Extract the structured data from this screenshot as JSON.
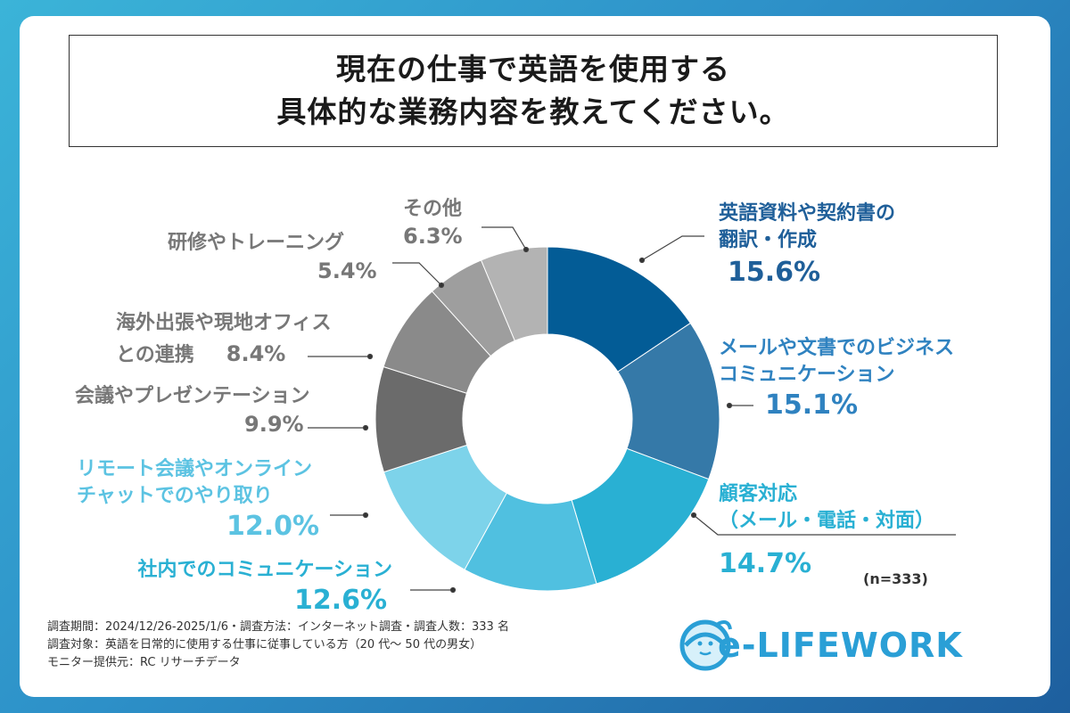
{
  "title_lines": [
    "現在の仕事で英語を使用する",
    "具体的な業務内容を教えてください。"
  ],
  "chart_data": {
    "type": "pie",
    "donut": true,
    "slices": [
      {
        "label": "英語資料や契約書の翻訳・作成",
        "value": 15.6,
        "pct": "15.6%",
        "color": "#035c96"
      },
      {
        "label": "メールや文書でのビジネスコミュニケーション",
        "value": 15.1,
        "pct": "15.1%",
        "color": "#3579a8"
      },
      {
        "label": "顧客対応（メール・電話・対面）",
        "value": 14.7,
        "pct": "14.7%",
        "color": "#29b0d3"
      },
      {
        "label": "社内でのコミュニケーション",
        "value": 12.6,
        "pct": "12.6%",
        "color": "#50c0e0"
      },
      {
        "label": "リモート会議やオンラインチャットでのやり取り",
        "value": 12.0,
        "pct": "12.0%",
        "color": "#7dd3ea"
      },
      {
        "label": "会議やプレゼンテーション",
        "value": 9.9,
        "pct": "9.9%",
        "color": "#6b6b6b"
      },
      {
        "label": "海外出張や現地オフィスとの連携",
        "value": 8.4,
        "pct": "8.4%",
        "color": "#8a8a8a"
      },
      {
        "label": "研修やトレーニング",
        "value": 5.4,
        "pct": "5.4%",
        "color": "#9e9e9e"
      },
      {
        "label": "その他",
        "value": 6.3,
        "pct": "6.3%",
        "color": "#b3b3b3"
      }
    ]
  },
  "labels": {
    "s0_name": [
      "英語資料や契約書の",
      "翻訳・作成"
    ],
    "s1_name": [
      "メールや文書でのビジネス",
      "コミュニケーション"
    ],
    "s2_name": [
      "顧客対応",
      "（メール・電話・対面）"
    ],
    "s3_name": [
      "社内でのコミュニケーション"
    ],
    "s4_name": [
      "リモート会議やオンライン",
      "チャットでのやり取り"
    ],
    "s5_name": [
      "会議やプレゼンテーション"
    ],
    "s6_name": [
      "海外出張や現地オフィス",
      "との連携"
    ],
    "s7_name": [
      "研修やトレーニング"
    ],
    "s8_name": [
      "その他"
    ]
  },
  "sample_note": "(n=333)",
  "footnotes": [
    "調査期間：2024/12/26-2025/1/6・調査方法：インターネット調査・調査人数：333 名",
    "調査対象：英語を日常的に使用する仕事に従事している方（20 代～ 50 代の男女）",
    "モニター提供元：RC リサーチデータ"
  ],
  "logo_text": "e-LIFEWORK",
  "colors": {
    "dark_blue": "#1f5f99",
    "mid_blue": "#2f82c0",
    "cyan": "#29b0d3",
    "light_cyan": "#5cc3e2",
    "gray": "#777777"
  }
}
